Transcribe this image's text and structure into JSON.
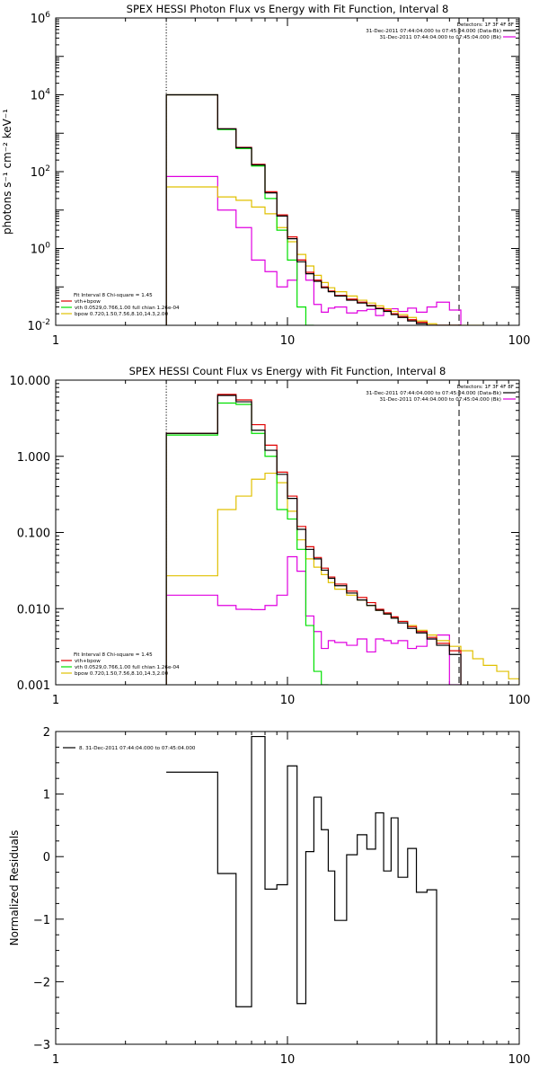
{
  "colors": {
    "data": "#000000",
    "total": "#e00000",
    "vth": "#00e000",
    "bpow": "#e0c000",
    "bkg": "#e000e0",
    "axis": "#000000"
  },
  "chart_data": [
    {
      "id": "photon",
      "type": "line",
      "step": true,
      "title": "SPEX HESSI Photon Flux vs Energy with Fit Function, Interval 8",
      "xlabel": "",
      "ylabel": "photons s⁻¹ cm⁻² keV⁻¹",
      "xscale": "log",
      "yscale": "log",
      "xlim": [
        1,
        100
      ],
      "ylim": [
        0.01,
        1000000
      ],
      "xticks": [
        {
          "v": 1,
          "label": "1"
        },
        {
          "v": 10,
          "label": "10"
        },
        {
          "v": 100,
          "label": "100"
        }
      ],
      "yticks": [
        {
          "v": 0.01,
          "label": "10⁻²",
          "base": "10",
          "exp": "-2"
        },
        {
          "v": 1,
          "label": "10⁰",
          "base": "10",
          "exp": "0"
        },
        {
          "v": 100,
          "label": "10²",
          "base": "10",
          "exp": "2"
        },
        {
          "v": 10000,
          "label": "10⁴",
          "base": "10",
          "exp": "4"
        },
        {
          "v": 1000000,
          "label": "10⁶",
          "base": "10",
          "exp": "6"
        }
      ],
      "vlines": [
        {
          "x": 3,
          "style": "dotted"
        },
        {
          "x": 55,
          "style": "dashed"
        }
      ],
      "legend_top": {
        "placement": "top-right",
        "header": "Detectors: 1F 3F 4F 8F",
        "lines": [
          {
            "text": "31-Dec-2011 07:44:04.000 to 07:45:04.000 (Data-Bk)",
            "series": "data"
          },
          {
            "text": "31-Dec-2011 07:44:04.000 to 07:45:04.000 (Bk)",
            "series": "bkg"
          }
        ]
      },
      "legend_bottom": {
        "placement": "bottom-left",
        "header": "Fit Interval 8   Chi-square = 1.45",
        "lines": [
          {
            "text": "vth+bpow",
            "series": "total"
          },
          {
            "text": "vth 0.0529,0.766,1.00  full chian 1.26e-04",
            "series": "vth"
          },
          {
            "text": "bpow 0.720,1.50,7.56,8.10,14.3,2.00",
            "series": "bpow"
          }
        ]
      },
      "edges": [
        3,
        4,
        5,
        6,
        7,
        8,
        9,
        10,
        11,
        12,
        13,
        14,
        15,
        16,
        18,
        20,
        22,
        24,
        26,
        28,
        30,
        33,
        36,
        40,
        44,
        50,
        56,
        63,
        70
      ],
      "series": [
        {
          "key": "data",
          "values": [
            10000,
            10000,
            1300,
            420,
            150,
            28,
            7,
            1.8,
            0.45,
            0.22,
            0.14,
            0.095,
            0.075,
            0.058,
            0.045,
            0.038,
            0.032,
            0.027,
            0.023,
            0.019,
            0.016,
            0.013,
            0.011,
            0.009,
            0.0075,
            0.006,
            null,
            null
          ]
        },
        {
          "key": "total",
          "values": [
            10000,
            10000,
            1300,
            430,
            155,
            30,
            7.5,
            2,
            0.5,
            0.24,
            0.15,
            0.1,
            0.078,
            0.06,
            0.048,
            0.04,
            0.033,
            0.028,
            0.024,
            0.02,
            0.017,
            0.014,
            0.012,
            0.01,
            0.0085,
            0.007,
            null,
            null
          ]
        },
        {
          "key": "vth",
          "values": [
            10000,
            10000,
            1250,
            400,
            140,
            20,
            3,
            0.5,
            0.03,
            0.005,
            null,
            null,
            null,
            null,
            null,
            null,
            null,
            null,
            null,
            null,
            null,
            null,
            null,
            null,
            null,
            null,
            null,
            null
          ]
        },
        {
          "key": "bpow",
          "values": [
            40,
            40,
            22,
            18,
            12,
            8,
            3.5,
            1.5,
            0.7,
            0.35,
            0.2,
            0.13,
            0.095,
            0.075,
            0.058,
            0.045,
            0.038,
            0.032,
            0.027,
            0.023,
            0.019,
            0.016,
            0.013,
            0.011,
            0.0095,
            0.008,
            0.0068,
            0.006
          ]
        },
        {
          "key": "bkg",
          "values": [
            75,
            75,
            10,
            3.5,
            0.5,
            0.25,
            0.1,
            0.15,
            0.5,
            0.15,
            0.035,
            0.022,
            0.028,
            0.03,
            0.021,
            0.024,
            0.026,
            0.018,
            0.025,
            0.027,
            0.023,
            0.028,
            0.022,
            0.03,
            0.04,
            0.025,
            null,
            null
          ]
        }
      ]
    },
    {
      "id": "count",
      "type": "line",
      "step": true,
      "title": "SPEX HESSI Count Flux vs Energy with Fit Function, Interval 8",
      "xlabel": "",
      "ylabel": "",
      "xscale": "log",
      "yscale": "log",
      "xlim": [
        1,
        100
      ],
      "ylim": [
        0.001,
        10
      ],
      "xticks": [
        {
          "v": 1,
          "label": "1"
        },
        {
          "v": 10,
          "label": "10"
        },
        {
          "v": 100,
          "label": "100"
        }
      ],
      "yticks": [
        {
          "v": 0.001,
          "label": "0.001"
        },
        {
          "v": 0.01,
          "label": "0.010"
        },
        {
          "v": 0.1,
          "label": "0.100"
        },
        {
          "v": 1,
          "label": "1.000"
        },
        {
          "v": 10,
          "label": "10.000"
        }
      ],
      "vlines": [
        {
          "x": 3,
          "style": "dotted"
        },
        {
          "x": 55,
          "style": "dashed"
        }
      ],
      "legend_top": {
        "placement": "top-right",
        "header": "Detectors: 1F 3F 4F 8F",
        "lines": [
          {
            "text": "31-Dec-2011 07:44:04.000 to 07:45:04.000 (Data-Bk)",
            "series": "data"
          },
          {
            "text": "31-Dec-2011 07:44:04.000 to 07:45:04.000 (Bk)",
            "series": "bkg"
          }
        ]
      },
      "legend_bottom": {
        "placement": "bottom-left",
        "header": "Fit Interval 8   Chi-square = 1.45",
        "lines": [
          {
            "text": "vth+bpow",
            "series": "total"
          },
          {
            "text": "vth 0.0529,0.766,1.00  full chian 1.26e-04",
            "series": "vth"
          },
          {
            "text": "bpow 0.720,1.50,7.56,8.10,14.3,2.00",
            "series": "bpow"
          }
        ]
      },
      "edges": [
        3,
        4,
        5,
        6,
        7,
        8,
        9,
        10,
        11,
        12,
        13,
        14,
        15,
        16,
        18,
        20,
        22,
        24,
        26,
        28,
        30,
        33,
        36,
        40,
        44,
        50,
        56,
        63,
        70,
        80,
        90,
        100
      ],
      "series": [
        {
          "key": "data",
          "values": [
            2,
            2,
            6.3,
            5.2,
            2.2,
            1.2,
            0.58,
            0.28,
            0.11,
            0.06,
            0.045,
            0.032,
            0.025,
            0.02,
            0.016,
            0.013,
            0.011,
            0.0095,
            0.0085,
            0.0075,
            0.0065,
            0.0055,
            0.0048,
            0.004,
            0.0033,
            0.0025,
            null,
            null,
            null,
            null,
            null
          ]
        },
        {
          "key": "total",
          "values": [
            2,
            2,
            6.5,
            5.5,
            2.6,
            1.4,
            0.62,
            0.3,
            0.12,
            0.065,
            0.047,
            0.034,
            0.026,
            0.021,
            0.017,
            0.014,
            0.012,
            0.0098,
            0.0088,
            0.0078,
            0.0068,
            0.0058,
            0.005,
            0.0042,
            0.0035,
            0.0028,
            null,
            null,
            null,
            null,
            null
          ]
        },
        {
          "key": "vth",
          "values": [
            1.9,
            1.9,
            5,
            4.8,
            2,
            1,
            0.2,
            0.15,
            0.06,
            0.006,
            0.0015,
            0.001,
            null,
            null,
            null,
            null,
            null,
            null,
            null,
            null,
            null,
            null,
            null,
            null,
            null,
            null,
            null,
            null,
            null,
            null,
            null
          ]
        },
        {
          "key": "bpow",
          "values": [
            0.027,
            0.027,
            0.2,
            0.3,
            0.5,
            0.6,
            0.45,
            0.19,
            0.08,
            0.045,
            0.035,
            0.028,
            0.022,
            0.018,
            0.015,
            0.013,
            0.011,
            0.0095,
            0.0085,
            0.0076,
            0.0068,
            0.006,
            0.0052,
            0.0045,
            0.0038,
            0.0032,
            0.0028,
            0.0022,
            0.0018,
            0.0015,
            0.0012
          ]
        },
        {
          "key": "bkg",
          "values": [
            0.015,
            0.015,
            0.011,
            0.0098,
            0.0097,
            0.011,
            0.015,
            0.048,
            0.031,
            0.008,
            0.005,
            0.003,
            0.0038,
            0.0036,
            0.0033,
            0.004,
            0.0027,
            0.004,
            0.0038,
            0.0035,
            0.0038,
            0.003,
            0.0032,
            0.004,
            0.0045,
            0.001,
            null,
            null,
            null,
            null,
            null
          ]
        }
      ]
    },
    {
      "id": "resid",
      "type": "line",
      "step": true,
      "title": "",
      "xlabel": "",
      "ylabel": "Normalized Residuals",
      "xscale": "log",
      "yscale": "linear",
      "xlim": [
        1,
        100
      ],
      "ylim": [
        -3,
        2
      ],
      "xticks": [
        {
          "v": 1,
          "label": "1"
        },
        {
          "v": 10,
          "label": "10"
        },
        {
          "v": 100,
          "label": "100"
        }
      ],
      "yticks": [
        {
          "v": -3,
          "label": "−3"
        },
        {
          "v": -2,
          "label": "−2"
        },
        {
          "v": -1,
          "label": "−1"
        },
        {
          "v": 0,
          "label": "0"
        },
        {
          "v": 1,
          "label": "1"
        },
        {
          "v": 2,
          "label": "2"
        }
      ],
      "vlines": [],
      "legend_top": {
        "placement": "top-left",
        "header": "",
        "lines": [
          {
            "text": "8. 31-Dec-2011 07:44:04.000 to 07:45:04.000",
            "series": "data"
          }
        ]
      },
      "legend_bottom": null,
      "edges": [
        3,
        4,
        5,
        6,
        7,
        8,
        9,
        10,
        11,
        12,
        13,
        14,
        15,
        16,
        18,
        20,
        22,
        24,
        26,
        28,
        30,
        33,
        36,
        40,
        44,
        50,
        56
      ],
      "series": [
        {
          "key": "data",
          "values": [
            1.35,
            1.35,
            -0.27,
            -2.4,
            1.92,
            -0.52,
            -0.45,
            1.45,
            -2.35,
            0.08,
            0.95,
            0.43,
            -0.23,
            -1.02,
            0.03,
            0.35,
            0.12,
            0.7,
            -0.23,
            0.62,
            -0.33,
            0.13,
            -0.57,
            -0.53,
            -3.2,
            null
          ]
        }
      ]
    }
  ]
}
